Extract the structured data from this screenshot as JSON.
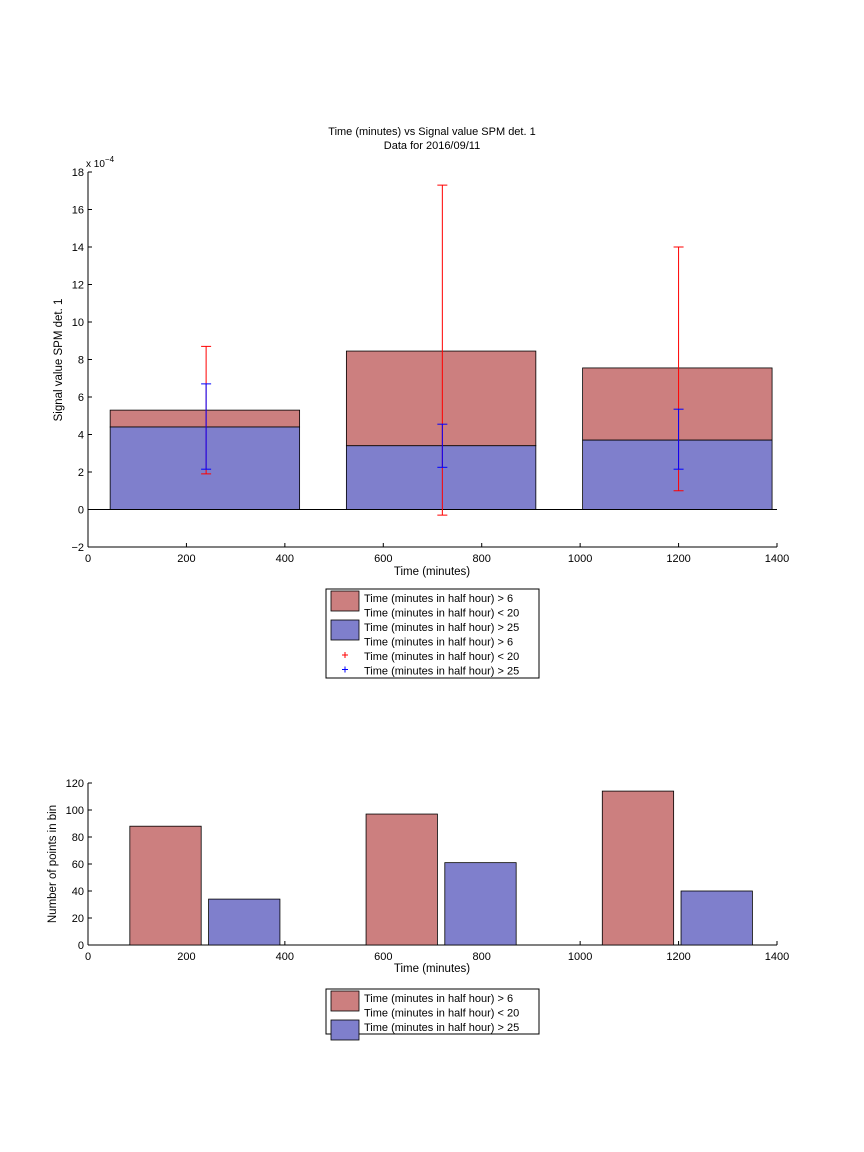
{
  "chart_data": [
    {
      "type": "bar",
      "subtype": "stacked-bar-with-error-bars",
      "title": "Time (minutes) vs Signal value SPM det. 1",
      "subtitle": "Data for 2016/09/11",
      "xlabel": "Time (minutes)",
      "ylabel": "Signal value SPM det. 1",
      "y_exponent_label": "x 10",
      "y_exponent": "−4",
      "xlim": [
        0,
        1400
      ],
      "ylim": [
        -2,
        18
      ],
      "xticks": [
        0,
        200,
        400,
        600,
        800,
        1000,
        1200,
        1400
      ],
      "yticks": [
        -2,
        0,
        2,
        4,
        6,
        8,
        10,
        12,
        14,
        16,
        18
      ],
      "xtick_labels": [
        "0",
        "200",
        "400",
        "600",
        "800",
        "1000",
        "1200",
        "1400"
      ],
      "ytick_labels": [
        "−2",
        "0",
        "2",
        "4",
        "6",
        "8",
        "10",
        "12",
        "14",
        "16",
        "18"
      ],
      "bars": [
        {
          "x0": 45,
          "x1": 430,
          "blue": 4.4,
          "total": 5.3
        },
        {
          "x0": 525,
          "x1": 910,
          "blue": 3.4,
          "total": 8.45
        },
        {
          "x0": 1005,
          "x1": 1390,
          "blue": 3.7,
          "total": 7.55
        }
      ],
      "errorbars": [
        {
          "series": "red",
          "x": 240,
          "low": 1.9,
          "high": 8.7
        },
        {
          "series": "blue",
          "x": 240,
          "low": 2.15,
          "high": 6.7
        },
        {
          "series": "red",
          "x": 720,
          "low": -0.3,
          "high": 17.3
        },
        {
          "series": "blue",
          "x": 720,
          "low": 2.25,
          "high": 4.55
        },
        {
          "series": "red",
          "x": 1200,
          "low": 1.0,
          "high": 14.0
        },
        {
          "series": "blue",
          "x": 1200,
          "low": 2.15,
          "high": 5.35
        }
      ],
      "colors": {
        "red_fill": "#cc7f7f",
        "blue_fill": "#7f7fcc",
        "red_line": "#ff0000",
        "blue_line": "#0000ff"
      },
      "legend": {
        "placement": "below",
        "entries": [
          {
            "kind": "patch",
            "color": "#cc7f7f",
            "label": "Time (minutes in half hour) > 6"
          },
          {
            "kind": "none",
            "label": "Time (minutes in half hour) < 20"
          },
          {
            "kind": "patch",
            "color": "#7f7fcc",
            "label": "Time (minutes in half hour) > 25"
          },
          {
            "kind": "none",
            "label": "Time (minutes in half hour) > 6"
          },
          {
            "kind": "marker",
            "color": "#ff0000",
            "label": "Time (minutes in half hour) < 20"
          },
          {
            "kind": "marker",
            "color": "#0000ff",
            "label": "Time (minutes in half hour) > 25"
          }
        ]
      }
    },
    {
      "type": "bar",
      "title": "",
      "xlabel": "Time (minutes)",
      "ylabel": "Number of points in bin",
      "xlim": [
        0,
        1400
      ],
      "ylim": [
        0,
        120
      ],
      "xticks": [
        0,
        200,
        400,
        600,
        800,
        1000,
        1200,
        1400
      ],
      "yticks": [
        0,
        20,
        40,
        60,
        80,
        100,
        120
      ],
      "xtick_labels": [
        "0",
        "200",
        "400",
        "600",
        "800",
        "1000",
        "1200",
        "1400"
      ],
      "ytick_labels": [
        "0",
        "20",
        "40",
        "60",
        "80",
        "100",
        "120"
      ],
      "bars": [
        {
          "x0": 85,
          "x1": 230,
          "value": 88,
          "color": "#cc7f7f"
        },
        {
          "x0": 245,
          "x1": 390,
          "value": 34,
          "color": "#7f7fcc"
        },
        {
          "x0": 565,
          "x1": 710,
          "value": 97,
          "color": "#cc7f7f"
        },
        {
          "x0": 725,
          "x1": 870,
          "value": 61,
          "color": "#7f7fcc"
        },
        {
          "x0": 1045,
          "x1": 1190,
          "value": 114,
          "color": "#cc7f7f"
        },
        {
          "x0": 1205,
          "x1": 1350,
          "value": 40,
          "color": "#7f7fcc"
        }
      ],
      "legend": {
        "placement": "below",
        "entries": [
          {
            "kind": "patch",
            "color": "#cc7f7f",
            "label": "Time (minutes in half hour) > 6"
          },
          {
            "kind": "none",
            "label": "Time (minutes in half hour) < 20"
          },
          {
            "kind": "patch",
            "color": "#7f7fcc",
            "label": "Time (minutes in half hour) > 25"
          }
        ]
      }
    }
  ]
}
